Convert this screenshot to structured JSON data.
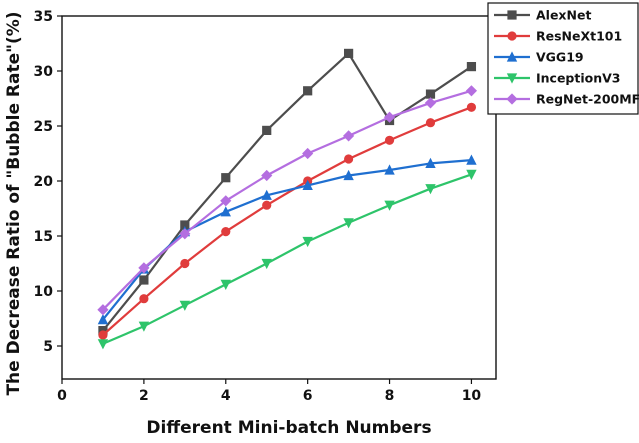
{
  "chart_data": {
    "type": "line",
    "title": "",
    "xlabel": "Different Mini-batch Numbers",
    "ylabel": "The Decrease Ratio of \"Bubble Rate\"(%)",
    "xlim": [
      0,
      10.6
    ],
    "ylim": [
      2,
      35
    ],
    "xticks": [
      0,
      2,
      4,
      6,
      8,
      10
    ],
    "yticks": [
      5,
      10,
      15,
      20,
      25,
      30,
      35
    ],
    "grid": false,
    "legend_position": "top-right",
    "x": [
      1,
      2,
      3,
      4,
      5,
      6,
      7,
      8,
      9,
      10
    ],
    "series": [
      {
        "name": "AlexNet",
        "color": "#4d4d4d",
        "marker": "square",
        "values": [
          6.4,
          11.0,
          16.0,
          20.3,
          24.6,
          28.2,
          31.6,
          25.5,
          27.9,
          30.4
        ]
      },
      {
        "name": "ResNeXt101",
        "color": "#e03c3c",
        "marker": "circle",
        "values": [
          6.0,
          9.3,
          12.5,
          15.4,
          17.8,
          20.0,
          22.0,
          23.7,
          25.3,
          26.7
        ]
      },
      {
        "name": "VGG19",
        "color": "#1f6fd0",
        "marker": "triangle-up",
        "values": [
          7.4,
          12.0,
          15.4,
          17.2,
          18.7,
          19.6,
          20.5,
          21.0,
          21.6,
          21.9
        ]
      },
      {
        "name": "InceptionV3",
        "color": "#2ec46a",
        "marker": "triangle-down",
        "values": [
          5.2,
          6.8,
          8.7,
          10.6,
          12.5,
          14.5,
          16.2,
          17.8,
          19.3,
          20.6
        ]
      },
      {
        "name": "RegNet-200MF",
        "color": "#b46ee0",
        "marker": "diamond",
        "values": [
          8.3,
          12.1,
          15.2,
          18.2,
          20.5,
          22.5,
          24.1,
          25.8,
          27.1,
          28.2
        ]
      }
    ]
  }
}
